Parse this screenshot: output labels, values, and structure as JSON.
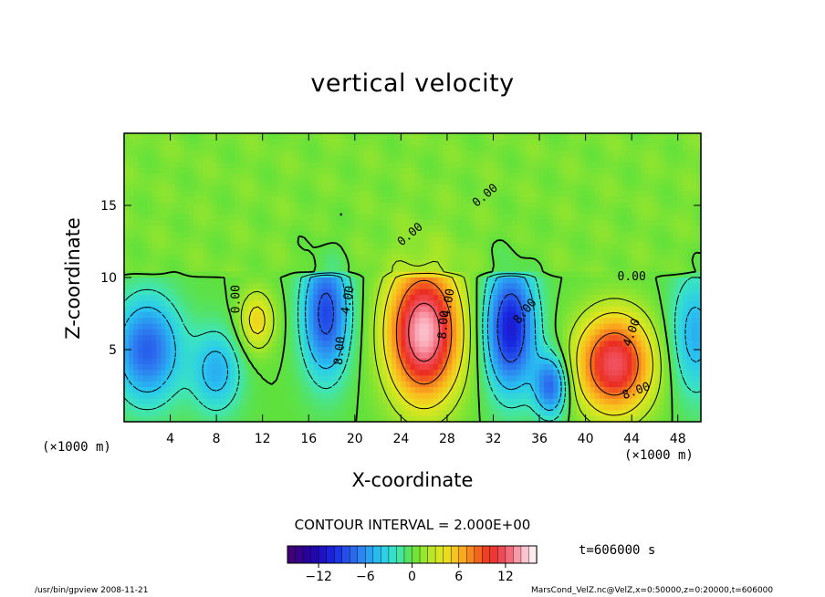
{
  "chart_data": {
    "type": "heatmap",
    "title": "vertical velocity",
    "xlabel": "X-coordinate",
    "ylabel": "Z-coordinate",
    "x_unit": "(×1000 m)",
    "x_ticks": [
      4,
      8,
      12,
      16,
      20,
      24,
      28,
      32,
      36,
      40,
      44,
      48
    ],
    "y_ticks": [
      5,
      10,
      15
    ],
    "xlim": [
      0,
      50
    ],
    "ylim": [
      0,
      20
    ],
    "contour_interval": "CONTOUR INTERVAL = 2.000E+00",
    "colorbar": {
      "range": [
        -16,
        16
      ],
      "ticks": [
        -12,
        -6,
        0,
        6,
        12
      ]
    },
    "time_label": "t=606000 s",
    "contour_labels": [
      "0.00",
      "0.00",
      "0.00",
      "0.00",
      "4.00",
      "4.00",
      "4.00",
      "8.00",
      "8.00",
      "8.00",
      "8.00"
    ],
    "features": [
      {
        "x": 26,
        "z": 6.2,
        "w": 14.5,
        "sx": 2.2,
        "sz": 3.3
      },
      {
        "x": 42.5,
        "z": 4.0,
        "w": 12.0,
        "sx": 2.3,
        "sz": 2.4
      },
      {
        "x": 11.5,
        "z": 7.0,
        "w": 5.0,
        "sx": 1.1,
        "sz": 1.5
      },
      {
        "x": 2,
        "z": 5.0,
        "w": -8.0,
        "sx": 2.0,
        "sz": 2.5
      },
      {
        "x": 8,
        "z": 3.5,
        "w": -5.0,
        "sx": 1.5,
        "sz": 2.0
      },
      {
        "x": 17.5,
        "z": 7.5,
        "w": -9.0,
        "sx": 1.4,
        "sz": 3.0
      },
      {
        "x": 33.5,
        "z": 6.5,
        "w": -11.0,
        "sx": 1.5,
        "sz": 3.0
      },
      {
        "x": 37,
        "z": 2.5,
        "w": -8.0,
        "sx": 1.0,
        "sz": 1.5
      },
      {
        "x": 49.5,
        "z": 6.0,
        "w": -5.0,
        "sx": 1.5,
        "sz": 3.0
      }
    ]
  },
  "footer": {
    "left": "/usr/bin/gpview   2008-11-21",
    "right": "MarsCond_VelZ.nc@VelZ,x=0:50000,z=0:20000,t=606000"
  }
}
